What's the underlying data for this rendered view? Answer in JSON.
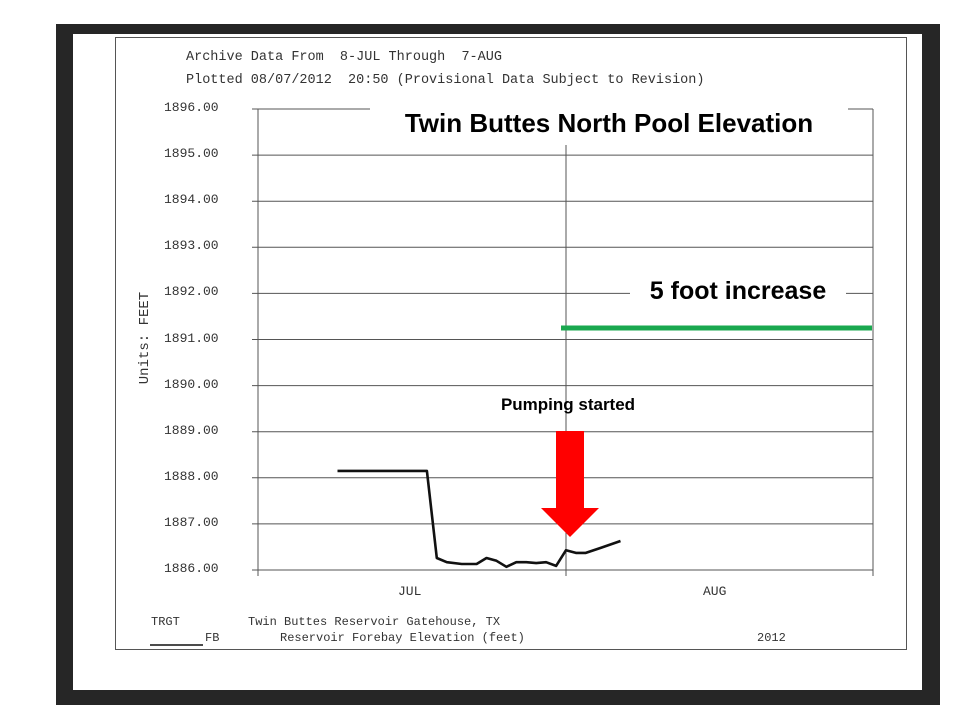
{
  "header": {
    "line1": "Archive Data From  8-JUL Through  7-AUG",
    "line2": "Plotted 08/07/2012  20:50 (Provisional Data Subject to Revision)"
  },
  "axis": {
    "y_unit_label": "Units: FEET",
    "y_ticks": [
      "1896.00",
      "1895.00",
      "1894.00",
      "1893.00",
      "1892.00",
      "1891.00",
      "1890.00",
      "1889.00",
      "1888.00",
      "1887.00",
      "1886.00"
    ],
    "x_ticks": [
      "JUL",
      "AUG"
    ]
  },
  "annotations": {
    "title": "Twin Buttes North Pool Elevation",
    "increase": "5 foot increase",
    "pumping": "Pumping started",
    "increase_line_color": "#1aa84f",
    "arrow_color": "#ff0000"
  },
  "footer": {
    "station_code": "TRGT",
    "station_name": "Twin Buttes Reservoir Gatehouse, TX",
    "series_code": "FB",
    "series_name": "Reservoir Forebay Elevation (feet)",
    "year": "2012"
  },
  "chart_data": {
    "type": "line",
    "title": "Twin Buttes North Pool Elevation",
    "subtitle": "Archive Data From 8-JUL Through 7-AUG; Plotted 08/07/2012 20:50 (Provisional Data Subject to Revision)",
    "xlabel": "",
    "ylabel": "Units: FEET",
    "ylim": [
      1886.0,
      1896.0
    ],
    "x_tick_labels": [
      "JUL",
      "AUG"
    ],
    "grid": true,
    "legend": [
      {
        "name": "FB - Reservoir Forebay Elevation (feet)",
        "position": "bottom"
      }
    ],
    "series": [
      {
        "name": "FB",
        "x": [
          "Jul 9",
          "Jul 18",
          "Jul 19",
          "Jul 20",
          "Jul 21.5",
          "Jul 23",
          "Jul 24",
          "Jul 25",
          "Jul 26",
          "Jul 27",
          "Jul 28",
          "Jul 29",
          "Jul 30",
          "Jul 31",
          "Aug 1",
          "Aug 2",
          "Aug 3",
          "Aug 4.5",
          "Aug 6.5"
        ],
        "values": [
          1888.15,
          1888.15,
          1886.26,
          1886.17,
          1886.13,
          1886.13,
          1886.26,
          1886.2,
          1886.07,
          1886.17,
          1886.17,
          1886.15,
          1886.17,
          1886.09,
          1886.43,
          1886.37,
          1886.37,
          1886.48,
          1886.63
        ]
      }
    ],
    "annotations": [
      {
        "text": "5 foot increase",
        "type": "horizontal_line",
        "y": 1891.2,
        "x_start": "Aug 1",
        "color": "#1aa84f"
      },
      {
        "text": "Pumping started",
        "type": "arrow",
        "x": "Aug 1",
        "color": "#ff0000"
      }
    ]
  }
}
